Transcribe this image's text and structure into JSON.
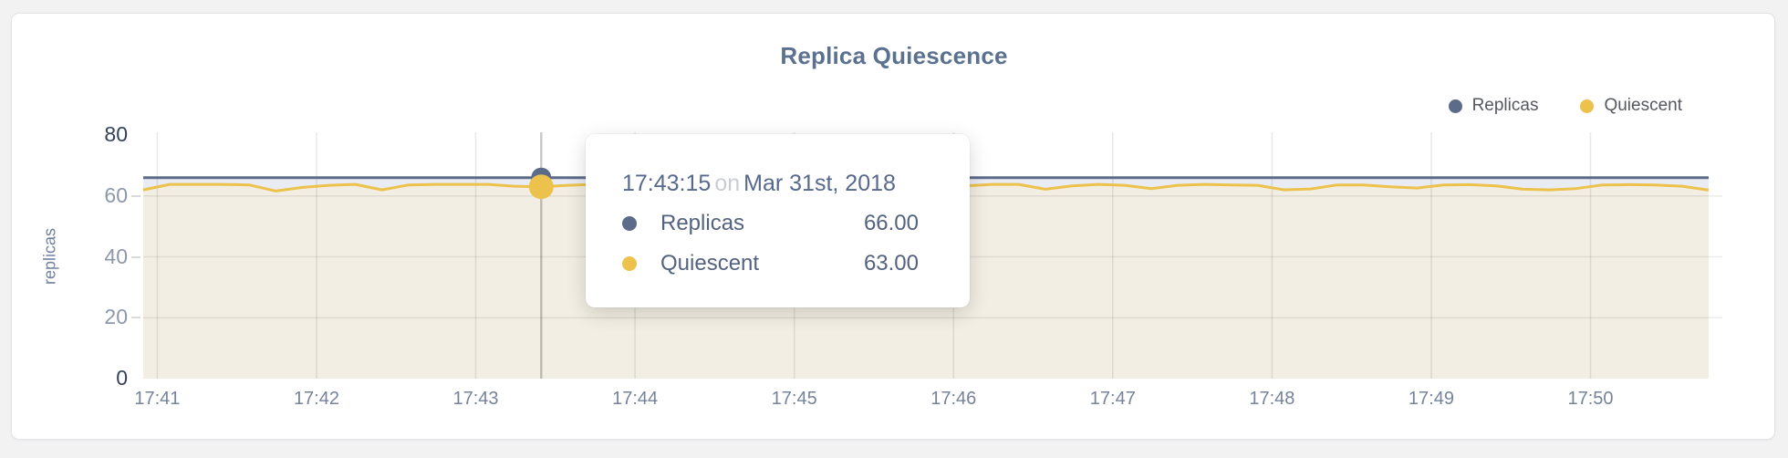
{
  "page": {
    "background": "#f2f2f3",
    "card_background": "#ffffff"
  },
  "chart_data": {
    "type": "area",
    "title": "Replica Quiescence",
    "title_color": "#5b7190",
    "ylabel": "replicas",
    "xlabel": "",
    "ylim": [
      0,
      80
    ],
    "grid": true,
    "legend_position": "top-right",
    "y_tick_labels": [
      "0",
      "20",
      "40",
      "60",
      "80"
    ],
    "x_tick_labels": [
      "17:41",
      "17:42",
      "17:43",
      "17:44",
      "17:45",
      "17:46",
      "17:47",
      "17:48",
      "17:49",
      "17:50"
    ],
    "series": [
      {
        "name": "Replicas",
        "color": "#5c6b89",
        "fill": "#e9ecf2",
        "values": [
          66,
          66,
          66,
          66,
          66,
          66,
          66,
          66,
          66,
          66,
          66,
          66,
          66,
          66,
          66,
          66,
          66,
          66,
          66,
          66,
          66,
          66,
          66,
          66,
          66,
          66,
          66,
          66,
          66,
          66,
          66,
          66,
          66,
          66,
          66,
          66,
          66,
          66,
          66,
          66,
          66,
          66,
          66,
          66,
          66,
          66,
          66,
          66,
          66,
          66,
          66,
          66,
          66,
          66,
          66,
          66,
          66,
          66,
          66,
          66
        ]
      },
      {
        "name": "Quiescent",
        "color": "#ecc24d",
        "fill": "#f2eee3",
        "values": [
          62.0,
          63.8,
          63.8,
          63.8,
          63.6,
          61.6,
          62.8,
          63.5,
          63.8,
          62.0,
          63.6,
          63.8,
          63.8,
          63.8,
          63.2,
          63.0,
          63.5,
          63.8,
          62.5,
          63.5,
          63.8,
          63.2,
          62.2,
          63.5,
          63.8,
          63.8,
          62.5,
          63.2,
          63.8,
          63.5,
          62.3,
          63.3,
          63.8,
          63.8,
          62.2,
          63.3,
          63.8,
          63.5,
          62.4,
          63.5,
          63.8,
          63.6,
          63.5,
          62.0,
          62.3,
          63.6,
          63.6,
          63.0,
          62.6,
          63.6,
          63.7,
          63.3,
          62.2,
          62.0,
          62.4,
          63.6,
          63.7,
          63.6,
          63.2,
          61.9
        ]
      }
    ]
  },
  "hover": {
    "point_index": 15,
    "time": "17:43:15",
    "conjunction": "on",
    "date": "Mar 31st, 2018",
    "rows": [
      {
        "name": "Replicas",
        "value": "66.00"
      },
      {
        "name": "Quiescent",
        "value": "63.00"
      }
    ]
  }
}
